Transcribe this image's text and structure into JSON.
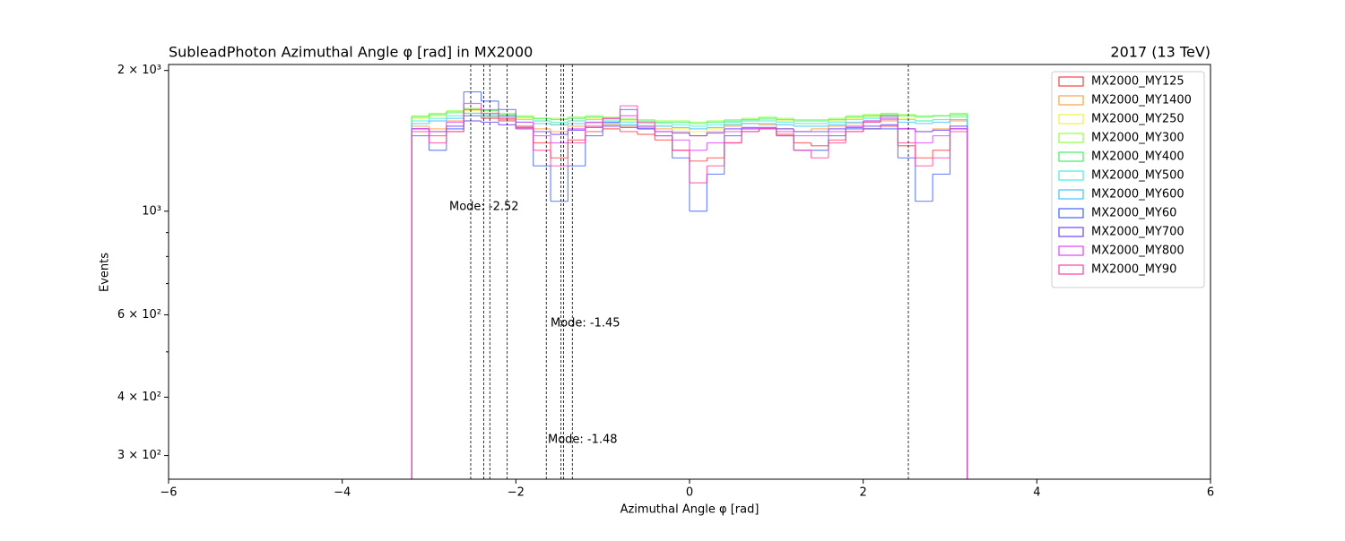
{
  "chart_data": {
    "type": "histogram",
    "title": "SubleadPhoton Azimuthal Angle  φ [rad] in MX2000",
    "subtitle": "2017 (13 TeV)",
    "x_label": "Azimuthal Angle  φ [rad]",
    "y_label": "Events",
    "log_y": true,
    "legend_position": "upper right",
    "xlim": [
      -6,
      6
    ],
    "xticks": [
      {
        "value": -6,
        "label": "−6"
      },
      {
        "value": -4,
        "label": "−4"
      },
      {
        "value": -2,
        "label": "−2"
      },
      0,
      2,
      4,
      6
    ],
    "ylim": [
      267,
      2060
    ],
    "yticks": [
      {
        "value": 300,
        "label": "3 × 10²"
      },
      {
        "value": 400,
        "label": "4 × 10²"
      },
      {
        "value": 600,
        "label": "6 × 10²"
      },
      {
        "value": 1000,
        "label": "10³"
      },
      {
        "value": 2000,
        "label": "2 × 10³"
      }
    ],
    "yminorticks": [
      500,
      700,
      800,
      900
    ],
    "bins": [
      -3.2,
      -3.0,
      -2.8,
      -2.6,
      -2.4,
      -2.2,
      -2.0,
      -1.8,
      -1.6,
      -1.4,
      -1.2,
      -1.0,
      -0.8,
      -0.6,
      -0.4,
      -0.2,
      0.0,
      0.2,
      0.4,
      0.6,
      0.8,
      1.0,
      1.2,
      1.4,
      1.6,
      1.8,
      2.0,
      2.2,
      2.4,
      2.6,
      2.8,
      3.0,
      3.2
    ],
    "mode_lines": [
      -2.52,
      -2.37,
      -2.3,
      -2.1,
      -1.65,
      -1.48,
      -1.45,
      -1.35,
      2.52
    ],
    "annotations": [
      "Mode: -2.52",
      "Mode: -1.45",
      "Mode: -1.48"
    ],
    "series": [
      {
        "name": "MX2000_MY125",
        "color": "#ff4040",
        "values": [
          1500,
          1450,
          1480,
          1600,
          1580,
          1560,
          1520,
          1400,
          1300,
          1420,
          1480,
          1500,
          1480,
          1460,
          1420,
          1350,
          1280,
          1300,
          1400,
          1480,
          1500,
          1460,
          1400,
          1380,
          1420,
          1480,
          1500,
          1520,
          1380,
          1300,
          1350,
          1500
        ]
      },
      {
        "name": "MX2000_MY1400",
        "color": "#ffa040",
        "values": [
          1520,
          1500,
          1560,
          1620,
          1600,
          1580,
          1550,
          1500,
          1480,
          1520,
          1540,
          1530,
          1520,
          1510,
          1500,
          1480,
          1450,
          1480,
          1520,
          1540,
          1530,
          1500,
          1480,
          1500,
          1520,
          1540,
          1550,
          1560,
          1500,
          1480,
          1500,
          1560
        ]
      },
      {
        "name": "MX2000_MY250",
        "color": "#f0f040",
        "values": [
          1580,
          1600,
          1620,
          1640,
          1620,
          1600,
          1580,
          1560,
          1540,
          1560,
          1580,
          1570,
          1560,
          1540,
          1520,
          1500,
          1480,
          1500,
          1540,
          1560,
          1570,
          1560,
          1540,
          1540,
          1560,
          1580,
          1590,
          1600,
          1580,
          1560,
          1570,
          1600
        ]
      },
      {
        "name": "MX2000_MY300",
        "color": "#90ff40",
        "values": [
          1600,
          1620,
          1640,
          1660,
          1640,
          1620,
          1600,
          1580,
          1580,
          1590,
          1600,
          1590,
          1580,
          1570,
          1560,
          1560,
          1550,
          1560,
          1570,
          1580,
          1590,
          1580,
          1570,
          1570,
          1580,
          1600,
          1610,
          1620,
          1610,
          1600,
          1600,
          1620
        ]
      },
      {
        "name": "MX2000_MY400",
        "color": "#40f060",
        "values": [
          1590,
          1610,
          1630,
          1650,
          1640,
          1610,
          1590,
          1580,
          1570,
          1580,
          1590,
          1580,
          1570,
          1560,
          1550,
          1550,
          1540,
          1550,
          1560,
          1570,
          1580,
          1570,
          1560,
          1560,
          1570,
          1590,
          1600,
          1610,
          1600,
          1590,
          1600,
          1610
        ]
      },
      {
        "name": "MX2000_MY500",
        "color": "#40f0e0",
        "values": [
          1560,
          1580,
          1600,
          1620,
          1610,
          1590,
          1570,
          1560,
          1550,
          1560,
          1570,
          1560,
          1550,
          1540,
          1540,
          1530,
          1520,
          1530,
          1550,
          1560,
          1560,
          1550,
          1540,
          1540,
          1550,
          1570,
          1580,
          1590,
          1570,
          1560,
          1570,
          1590
        ]
      },
      {
        "name": "MX2000_MY600",
        "color": "#40c0ff",
        "values": [
          1540,
          1560,
          1580,
          1600,
          1590,
          1570,
          1550,
          1540,
          1530,
          1540,
          1550,
          1540,
          1530,
          1520,
          1520,
          1510,
          1500,
          1510,
          1530,
          1540,
          1540,
          1530,
          1520,
          1520,
          1530,
          1550,
          1560,
          1570,
          1550,
          1540,
          1550,
          1570
        ]
      },
      {
        "name": "MX2000_MY60",
        "color": "#4060ff",
        "values": [
          1450,
          1350,
          1500,
          1800,
          1720,
          1650,
          1500,
          1250,
          1050,
          1250,
          1450,
          1550,
          1650,
          1500,
          1450,
          1300,
          1000,
          1200,
          1450,
          1500,
          1500,
          1450,
          1350,
          1350,
          1450,
          1500,
          1500,
          1500,
          1300,
          1050,
          1200,
          1500
        ]
      },
      {
        "name": "MX2000_MY700",
        "color": "#7040ff",
        "values": [
          1500,
          1480,
          1520,
          1560,
          1550,
          1530,
          1510,
          1480,
          1460,
          1490,
          1510,
          1520,
          1510,
          1500,
          1480,
          1470,
          1450,
          1470,
          1500,
          1510,
          1510,
          1500,
          1480,
          1480,
          1500,
          1510,
          1520,
          1530,
          1500,
          1480,
          1490,
          1520
        ]
      },
      {
        "name": "MX2000_MY800",
        "color": "#e040ff",
        "values": [
          1500,
          1480,
          1550,
          1700,
          1650,
          1600,
          1550,
          1450,
          1400,
          1500,
          1550,
          1580,
          1600,
          1520,
          1480,
          1420,
          1350,
          1400,
          1480,
          1500,
          1500,
          1480,
          1450,
          1450,
          1480,
          1520,
          1560,
          1580,
          1500,
          1400,
          1450,
          1500
        ]
      },
      {
        "name": "MX2000_MY90",
        "color": "#ff40a0",
        "values": [
          1480,
          1400,
          1480,
          1650,
          1620,
          1580,
          1500,
          1350,
          1250,
          1400,
          1520,
          1580,
          1680,
          1550,
          1450,
          1350,
          1150,
          1250,
          1400,
          1480,
          1500,
          1450,
          1350,
          1300,
          1400,
          1480,
          1550,
          1600,
          1400,
          1250,
          1300,
          1480
        ]
      }
    ]
  }
}
